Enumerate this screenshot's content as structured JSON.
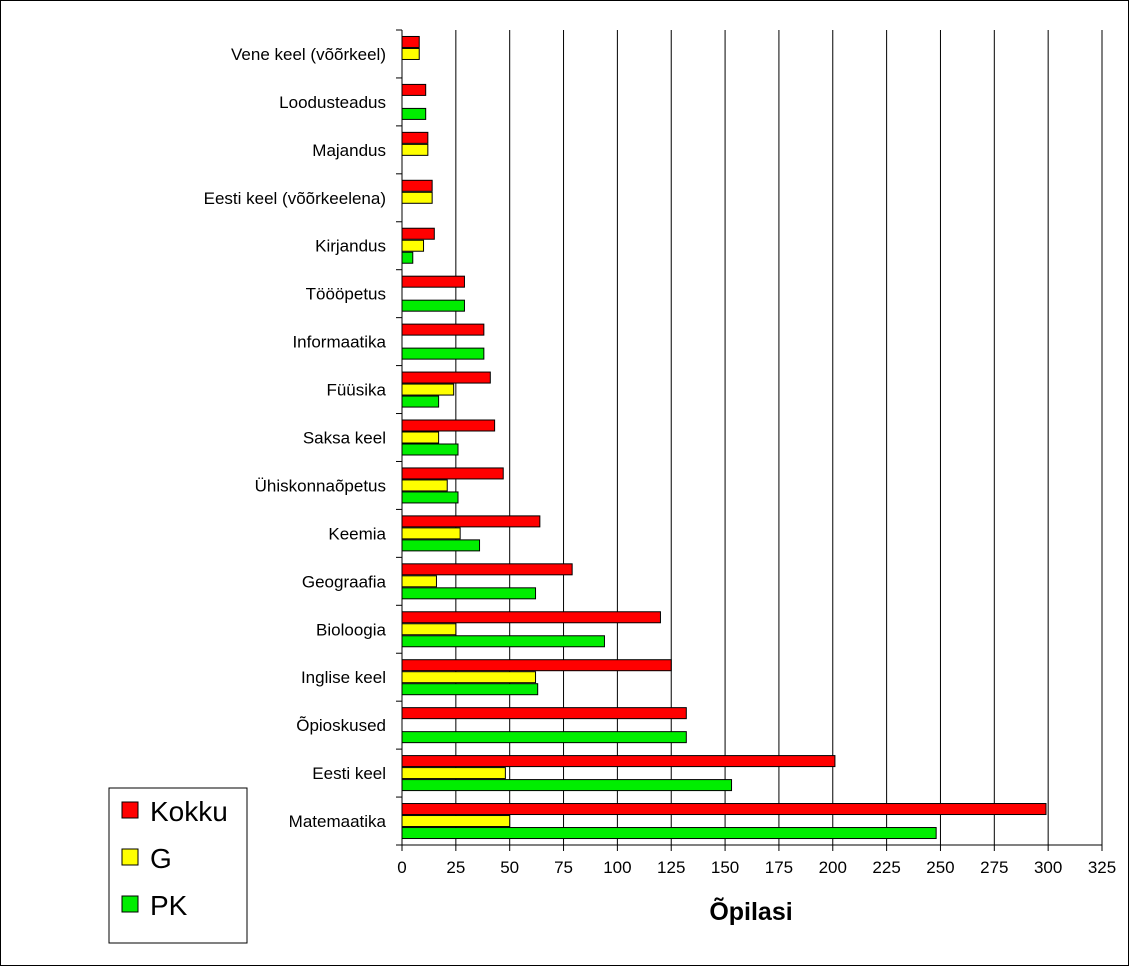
{
  "chart_data": {
    "type": "bar",
    "orientation": "horizontal",
    "title": "",
    "xlabel": "Õpilasi",
    "ylabel": "",
    "xlim": [
      0,
      325
    ],
    "x_ticks": [
      0,
      25,
      50,
      75,
      100,
      125,
      150,
      175,
      200,
      225,
      250,
      275,
      300,
      325
    ],
    "grid": "vertical gridlines",
    "legend_position": "bottom-left",
    "categories": [
      "Vene keel (võõrkeel)",
      "Loodusteadus",
      "Majandus",
      "Eesti keel (võõrkeelena)",
      "Kirjandus",
      "Töööpetus",
      "Informaatika",
      "Füüsika",
      "Saksa keel",
      "Ühiskonnaõpetus",
      "Keemia",
      "Geograafia",
      "Bioloogia",
      "Inglise keel",
      "Õpioskused",
      "Eesti keel",
      "Matemaatika"
    ],
    "series": [
      {
        "name": "Kokku",
        "color": "#ff0000",
        "values": [
          8,
          11,
          12,
          14,
          15,
          29,
          38,
          41,
          43,
          47,
          64,
          79,
          120,
          125,
          132,
          201,
          299
        ]
      },
      {
        "name": "G",
        "color": "#ffff00",
        "values": [
          8,
          0,
          12,
          14,
          10,
          0,
          0,
          24,
          17,
          21,
          27,
          16,
          25,
          62,
          0,
          48,
          50
        ]
      },
      {
        "name": "PK",
        "color": "#00ee00",
        "values": [
          0,
          11,
          0,
          0,
          5,
          29,
          38,
          17,
          26,
          26,
          36,
          62,
          94,
          63,
          132,
          153,
          248
        ]
      }
    ]
  }
}
